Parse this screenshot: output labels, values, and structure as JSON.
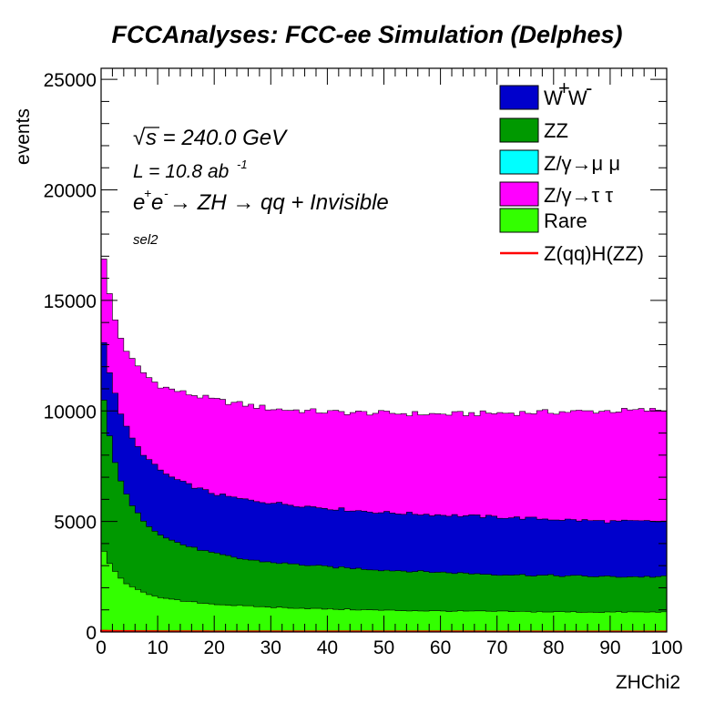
{
  "chart_data": {
    "type": "area",
    "stacked": true,
    "title": "FCCAnalyses: FCC-ee Simulation (Delphes)",
    "xlabel": "ZHChi2",
    "ylabel": "events",
    "xlim": [
      0,
      100
    ],
    "ylim": [
      0,
      25500
    ],
    "x_ticks": [
      "0",
      "10",
      "20",
      "30",
      "40",
      "50",
      "60",
      "70",
      "80",
      "90",
      "100"
    ],
    "y_ticks": [
      "0",
      "5000",
      "10000",
      "15000",
      "20000",
      "25000"
    ],
    "grid": false,
    "legend_position": "top-right",
    "annotations": {
      "sqrt_s": "s = 240.0 GeV",
      "sqrt_s_symbol": "√",
      "lumi": "L = 10.8 ab",
      "lumi_exp": "-1",
      "process": "e e  → ZH  → qq + Invisible",
      "selection": "sel2"
    },
    "legend": {
      "ww": "W W",
      "zz": "ZZ",
      "zmumu": "Z/γ→μ μ",
      "ztautau": "Z/γ→τ τ",
      "rare": "Rare",
      "signal": "Z(qq)H(ZZ)"
    },
    "colors": {
      "ww": "#0000cc",
      "zz": "#009900",
      "zmumu": "#00ffff",
      "ztautau": "#ff00ff",
      "rare": "#33ff00",
      "signal": "#ff0000"
    },
    "boundaries": {
      "x": [
        0,
        1,
        2,
        3,
        4,
        5,
        6,
        8,
        10,
        12,
        15,
        20,
        25,
        30,
        40,
        50,
        60,
        70,
        80,
        90,
        100
      ],
      "rare_top": [
        4000,
        3300,
        2900,
        2550,
        2300,
        2100,
        1950,
        1750,
        1600,
        1480,
        1380,
        1260,
        1180,
        1120,
        1040,
        980,
        950,
        930,
        910,
        900,
        900
      ],
      "zz_top": [
        11400,
        9500,
        8200,
        7200,
        6500,
        5900,
        5500,
        4900,
        4500,
        4200,
        3900,
        3550,
        3300,
        3150,
        2950,
        2800,
        2700,
        2600,
        2550,
        2500,
        2500
      ],
      "ww_top": [
        14000,
        12300,
        11200,
        10300,
        9500,
        9000,
        8500,
        7900,
        7400,
        7050,
        6700,
        6250,
        6000,
        5850,
        5600,
        5400,
        5300,
        5200,
        5100,
        5000,
        5000
      ],
      "ztautau_top": [
        18000,
        15900,
        14600,
        13600,
        13000,
        12500,
        12100,
        11600,
        11200,
        11000,
        10800,
        10500,
        10300,
        10100,
        9950,
        9900,
        9850,
        9900,
        9950,
        10000,
        10050
      ],
      "signal": [
        60,
        55,
        50,
        45,
        42,
        40,
        38,
        35,
        33,
        31,
        30,
        28,
        27,
        26,
        25,
        24,
        24,
        23,
        23,
        22,
        22
      ]
    }
  }
}
